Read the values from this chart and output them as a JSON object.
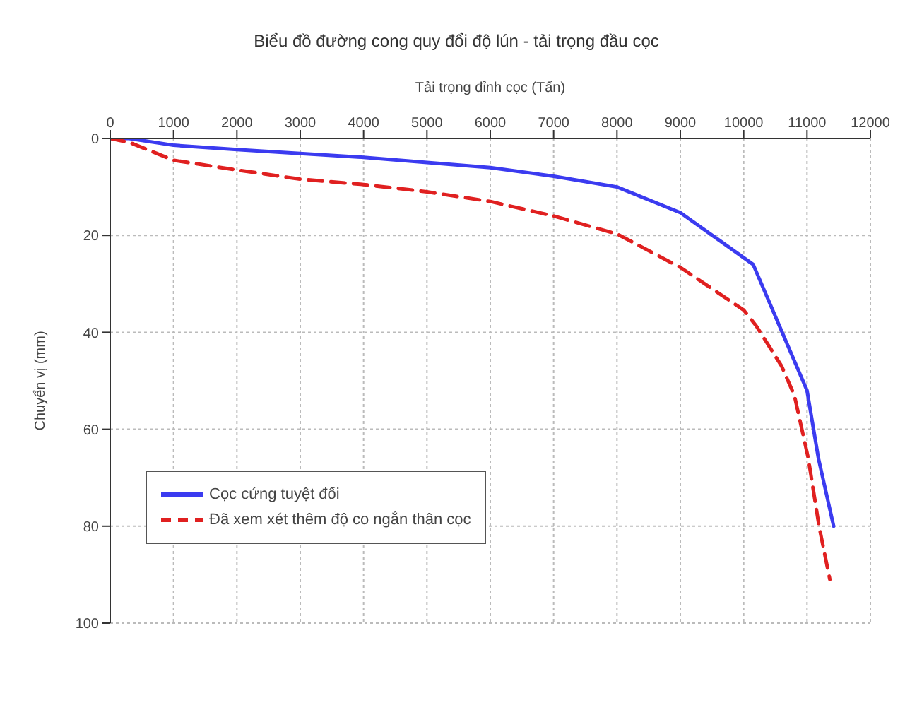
{
  "chart_data": {
    "type": "line",
    "title": "Biểu đồ đường cong quy đổi độ lún - tải trọng đầu cọc",
    "xlabel": "Tải trọng đỉnh cọc (Tấn)",
    "ylabel": "Chuyển vị (mm)",
    "xlim": [
      0,
      12000
    ],
    "xticks": [
      0,
      1000,
      2000,
      3000,
      4000,
      5000,
      6000,
      7000,
      8000,
      9000,
      10000,
      11000,
      12000
    ],
    "ylim": [
      100,
      0
    ],
    "yticks": [
      0,
      20,
      40,
      60,
      80,
      100
    ],
    "grid": true,
    "legend": "left",
    "marker": "none",
    "series": [
      {
        "name": "Cọc cứng tuyệt đối",
        "color": "#3b3bf0",
        "line_style": "solid",
        "x": [
          0,
          300,
          1000,
          2000,
          4000,
          6000,
          7000,
          8000,
          9000,
          10150,
          11000,
          11180,
          11420
        ],
        "values": [
          0,
          0,
          1.4,
          2.3,
          3.9,
          6,
          7.8,
          10,
          15.3,
          26,
          52,
          66,
          80
        ]
      },
      {
        "name": "Đã xem xét thêm độ co ngắn thân cọc",
        "color": "#e02020",
        "line_style": "dashed",
        "x": [
          0,
          300,
          1000,
          2000,
          3000,
          4000,
          5000,
          6000,
          7000,
          8000,
          9000,
          10000,
          10200,
          10600,
          10800,
          11020,
          11190,
          11360
        ],
        "values": [
          0,
          0.8,
          4.5,
          6.5,
          8.4,
          9.5,
          11,
          13,
          16,
          19.7,
          26.6,
          35.4,
          38.7,
          47,
          53,
          66,
          80,
          91
        ]
      }
    ]
  }
}
